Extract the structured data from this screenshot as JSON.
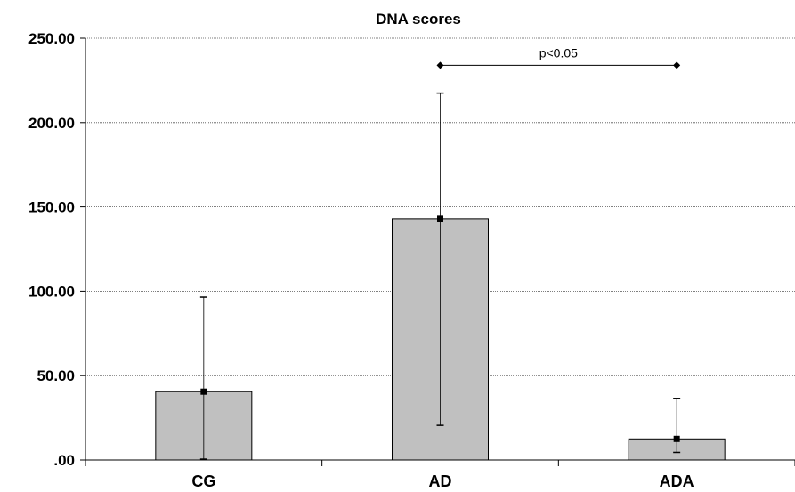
{
  "chart_data": {
    "type": "bar",
    "title": "DNA scores",
    "xlabel": "",
    "ylabel": "",
    "categories": [
      "CG",
      "AD",
      "ADA"
    ],
    "values": [
      40.5,
      143.0,
      12.5
    ],
    "error_bars": [
      {
        "upper": 96.5,
        "lower": 0.5
      },
      {
        "upper": 217.5,
        "lower": 20.5
      },
      {
        "upper": 36.5,
        "lower": 4.5
      }
    ],
    "ylim": [
      0,
      250
    ],
    "yticks": [
      0,
      50,
      100,
      150,
      200,
      250
    ],
    "ytick_labels": [
      ".00",
      "50.00",
      "100.00",
      "150.00",
      "200.00",
      "250.00"
    ],
    "grid": true,
    "bar_color": "#c0c0c0",
    "annotation": {
      "text": "p<0.05",
      "from_category": "AD",
      "to_category": "ADA",
      "y": 234
    }
  }
}
